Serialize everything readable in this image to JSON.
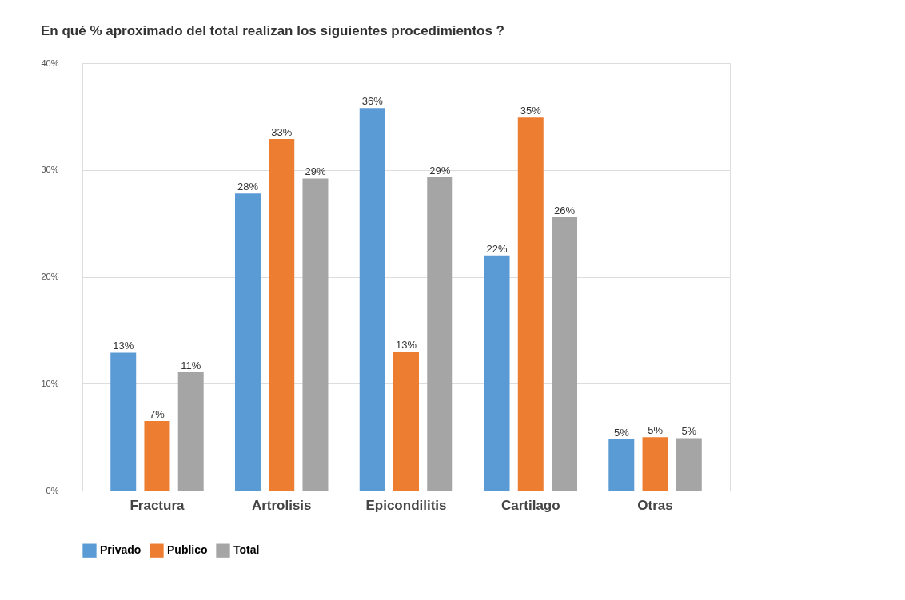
{
  "chart_data": {
    "type": "bar",
    "title": "En qué % aproximado del total realizan los siguientes procedimientos ?",
    "categories": [
      "Fractura",
      "Artrolisis",
      "Epicondilitis",
      "Cartilago",
      "Otras"
    ],
    "series": [
      {
        "name": "Privado",
        "color": "#5b9bd5",
        "values": [
          12.9,
          27.8,
          35.8,
          22.0,
          4.8
        ],
        "value_labels": [
          "13%",
          "28%",
          "36%",
          "22%",
          "5%"
        ]
      },
      {
        "name": "Publico",
        "color": "#ed7d31",
        "values": [
          6.5,
          32.9,
          13.0,
          34.9,
          5.0
        ],
        "value_labels": [
          "7%",
          "33%",
          "13%",
          "35%",
          "5%"
        ]
      },
      {
        "name": "Total",
        "color": "#a5a5a5",
        "values": [
          11.1,
          29.2,
          29.3,
          25.6,
          4.9
        ],
        "value_labels": [
          "11%",
          "29%",
          "29%",
          "26%",
          "5%"
        ]
      }
    ],
    "ylim": [
      0,
      40
    ],
    "yticks": [
      {
        "value": 0,
        "label": "0%"
      },
      {
        "value": 10,
        "label": "10%"
      },
      {
        "value": 20,
        "label": "20%"
      },
      {
        "value": 30,
        "label": "30%"
      },
      {
        "value": 40,
        "label": "40%"
      }
    ],
    "grid": "y",
    "legend": "bottom"
  }
}
